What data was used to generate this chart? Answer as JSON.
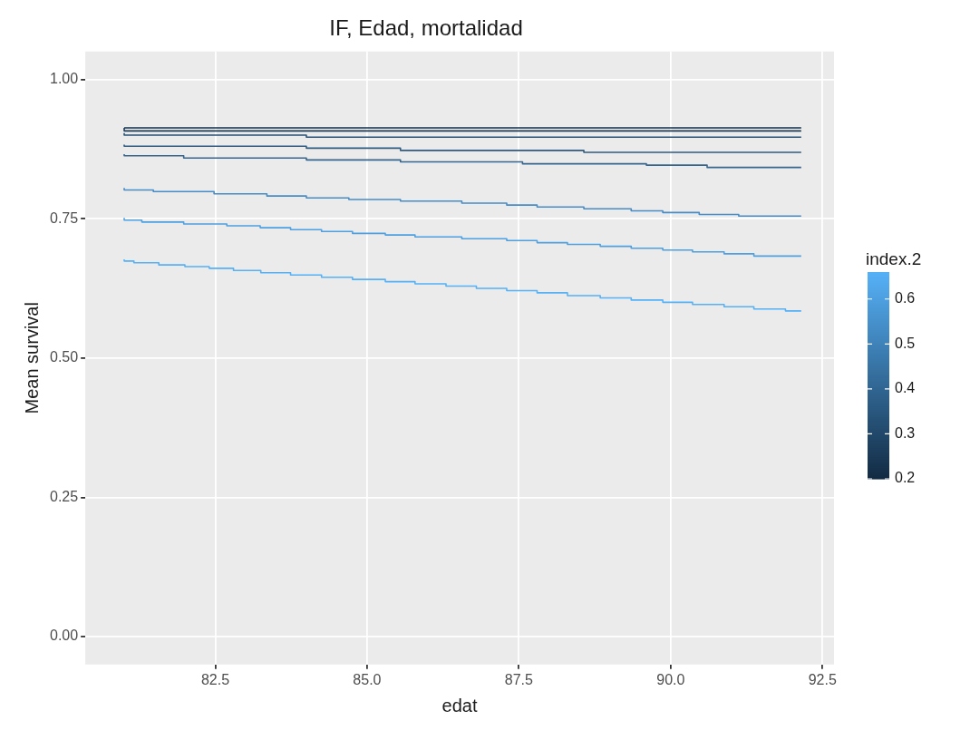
{
  "chart_data": {
    "type": "step",
    "title": "IF, Edad, mortalidad",
    "xlabel": "edat",
    "ylabel": "Mean survival",
    "clabel": "index.2",
    "clim": [
      0.2,
      0.66
    ],
    "cticks": [
      0.2,
      0.3,
      0.4,
      0.5,
      0.6
    ],
    "xlim": [
      80.36,
      92.69
    ],
    "ylim": [
      -0.05,
      1.05
    ],
    "xticks": [
      {
        "value": 82.5,
        "label": "82.5"
      },
      {
        "value": 85,
        "label": "85.0"
      },
      {
        "value": 87.5,
        "label": "87.5"
      },
      {
        "value": 90,
        "label": "90.0"
      },
      {
        "value": 92.5,
        "label": "92.5"
      }
    ],
    "yticks": [
      {
        "value": 0,
        "label": "0.00"
      },
      {
        "value": 0.25,
        "label": "0.25"
      },
      {
        "value": 0.5,
        "label": "0.50"
      },
      {
        "value": 0.75,
        "label": "0.75"
      },
      {
        "value": 1,
        "label": "1.00"
      }
    ],
    "grid": true,
    "series": [
      {
        "color": "#152f49",
        "x": [
          81,
          92.15
        ],
        "values": [
          0.913,
          0.913
        ]
      },
      {
        "color": "#1b3a58",
        "x": [
          81,
          91.12,
          92.15
        ],
        "values": [
          0.913,
          0.9075,
          0.9075
        ]
      },
      {
        "color": "#2a5274",
        "x": [
          81,
          84.0,
          88.57,
          92.15
        ],
        "values": [
          0.9036,
          0.9,
          0.8962,
          0.8962
        ]
      },
      {
        "color": "#305b80",
        "x": [
          81,
          84.0,
          85.55,
          88.57,
          91.12,
          92.15
        ],
        "values": [
          0.883,
          0.88,
          0.8765,
          0.8725,
          0.869,
          0.869
        ]
      },
      {
        "color": "#36658e",
        "x": [
          81,
          81.98,
          84.0,
          85.55,
          87.56,
          89.6,
          90.6,
          91.6,
          92.15
        ],
        "values": [
          0.866,
          0.863,
          0.859,
          0.8555,
          0.852,
          0.8485,
          0.846,
          0.842,
          0.842
        ]
      },
      {
        "color": "#478cc7",
        "x": [
          81,
          81.48,
          82.48,
          83.35,
          84.0,
          84.7,
          85.55,
          86.56,
          87.3,
          87.8,
          88.57,
          89.35,
          89.87,
          90.47,
          91.12,
          91.82,
          92.15
        ],
        "values": [
          0.805,
          0.8015,
          0.7986,
          0.7947,
          0.7907,
          0.7873,
          0.7845,
          0.7817,
          0.778,
          0.7744,
          0.771,
          0.7677,
          0.764,
          0.761,
          0.7575,
          0.7547,
          0.7547
        ]
      },
      {
        "color": "#4fa0e0",
        "x": [
          81,
          81.29,
          81.98,
          82.69,
          83.24,
          83.74,
          84.25,
          84.76,
          85.3,
          85.79,
          86.56,
          87.3,
          87.8,
          88.3,
          88.84,
          89.35,
          89.87,
          90.36,
          90.88,
          91.37,
          91.89,
          92.15
        ],
        "values": [
          0.7513,
          0.7474,
          0.744,
          0.7406,
          0.7372,
          0.7338,
          0.7304,
          0.727,
          0.7236,
          0.7208,
          0.7174,
          0.714,
          0.7107,
          0.707,
          0.704,
          0.7005,
          0.697,
          0.6937,
          0.6904,
          0.687,
          0.683,
          0.683
        ]
      },
      {
        "color": "#56b1f7",
        "x": [
          81,
          81.16,
          81.57,
          82.0,
          82.4,
          82.8,
          83.25,
          83.74,
          84.25,
          84.76,
          85.3,
          85.79,
          86.3,
          86.8,
          87.3,
          87.8,
          88.3,
          88.84,
          89.35,
          89.87,
          90.36,
          90.88,
          91.37,
          91.89,
          92.15
        ],
        "values": [
          0.677,
          0.674,
          0.671,
          0.667,
          0.664,
          0.661,
          0.657,
          0.653,
          0.649,
          0.645,
          0.641,
          0.637,
          0.633,
          0.629,
          0.625,
          0.621,
          0.617,
          0.612,
          0.608,
          0.604,
          0.6,
          0.596,
          0.592,
          0.588,
          0.5845
        ]
      }
    ]
  }
}
